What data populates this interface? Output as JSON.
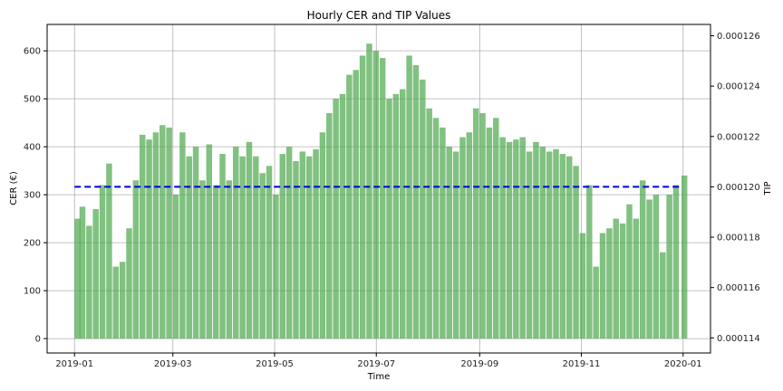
{
  "chart_data": {
    "type": "bar",
    "title": "Hourly CER and TIP Values",
    "xlabel": "Time",
    "ylabel": "CER (€)",
    "ylabel_right": "TIP",
    "grid": true,
    "x_range": [
      "2019-01-01",
      "2020-01-01"
    ],
    "ylim": [
      -30,
      655
    ],
    "ylim_right": [
      0.0001134,
      0.00012645
    ],
    "x_ticks": [
      "2019-01",
      "2019-03",
      "2019-05",
      "2019-07",
      "2019-09",
      "2019-11",
      "2020-01"
    ],
    "y_ticks": [
      0,
      100,
      200,
      300,
      400,
      500,
      600
    ],
    "y_ticks_right": [
      "0.000114",
      "0.000116",
      "0.000118",
      "0.000120",
      "0.000122",
      "0.000124",
      "0.000126"
    ],
    "colors": {
      "bars": "#4ca64c",
      "tip_line": "#0000dd",
      "left_axis": "#008000",
      "right_axis": "#0000cc",
      "grid": "#b0b0b0"
    },
    "series": [
      {
        "name": "CER (€)",
        "axis": "left",
        "style": "bars",
        "points": [
          [
            "2019-01-01",
            250
          ],
          [
            "2019-01-04",
            275
          ],
          [
            "2019-01-08",
            235
          ],
          [
            "2019-01-12",
            270
          ],
          [
            "2019-01-16",
            320
          ],
          [
            "2019-01-20",
            365
          ],
          [
            "2019-01-24",
            150
          ],
          [
            "2019-01-28",
            160
          ],
          [
            "2019-02-01",
            230
          ],
          [
            "2019-02-05",
            330
          ],
          [
            "2019-02-09",
            425
          ],
          [
            "2019-02-13",
            415
          ],
          [
            "2019-02-17",
            430
          ],
          [
            "2019-02-21",
            445
          ],
          [
            "2019-02-25",
            440
          ],
          [
            "2019-03-01",
            300
          ],
          [
            "2019-03-05",
            430
          ],
          [
            "2019-03-09",
            380
          ],
          [
            "2019-03-13",
            400
          ],
          [
            "2019-03-17",
            330
          ],
          [
            "2019-03-21",
            405
          ],
          [
            "2019-03-25",
            320
          ],
          [
            "2019-03-29",
            385
          ],
          [
            "2019-04-02",
            330
          ],
          [
            "2019-04-06",
            400
          ],
          [
            "2019-04-10",
            380
          ],
          [
            "2019-04-14",
            410
          ],
          [
            "2019-04-18",
            380
          ],
          [
            "2019-04-22",
            345
          ],
          [
            "2019-04-26",
            360
          ],
          [
            "2019-04-30",
            300
          ],
          [
            "2019-05-04",
            385
          ],
          [
            "2019-05-08",
            400
          ],
          [
            "2019-05-12",
            370
          ],
          [
            "2019-05-16",
            390
          ],
          [
            "2019-05-20",
            380
          ],
          [
            "2019-05-24",
            395
          ],
          [
            "2019-05-28",
            430
          ],
          [
            "2019-06-01",
            470
          ],
          [
            "2019-06-05",
            500
          ],
          [
            "2019-06-09",
            510
          ],
          [
            "2019-06-13",
            550
          ],
          [
            "2019-06-17",
            560
          ],
          [
            "2019-06-21",
            590
          ],
          [
            "2019-06-25",
            615
          ],
          [
            "2019-06-29",
            600
          ],
          [
            "2019-07-03",
            585
          ],
          [
            "2019-07-07",
            500
          ],
          [
            "2019-07-11",
            510
          ],
          [
            "2019-07-15",
            520
          ],
          [
            "2019-07-19",
            590
          ],
          [
            "2019-07-23",
            570
          ],
          [
            "2019-07-27",
            540
          ],
          [
            "2019-07-31",
            480
          ],
          [
            "2019-08-04",
            460
          ],
          [
            "2019-08-08",
            440
          ],
          [
            "2019-08-12",
            400
          ],
          [
            "2019-08-16",
            390
          ],
          [
            "2019-08-20",
            420
          ],
          [
            "2019-08-24",
            430
          ],
          [
            "2019-08-28",
            480
          ],
          [
            "2019-09-01",
            470
          ],
          [
            "2019-09-05",
            440
          ],
          [
            "2019-09-09",
            460
          ],
          [
            "2019-09-13",
            420
          ],
          [
            "2019-09-17",
            410
          ],
          [
            "2019-09-21",
            415
          ],
          [
            "2019-09-25",
            420
          ],
          [
            "2019-09-29",
            390
          ],
          [
            "2019-10-03",
            410
          ],
          [
            "2019-10-07",
            400
          ],
          [
            "2019-10-11",
            390
          ],
          [
            "2019-10-15",
            395
          ],
          [
            "2019-10-19",
            385
          ],
          [
            "2019-10-23",
            380
          ],
          [
            "2019-10-27",
            360
          ],
          [
            "2019-10-31",
            220
          ],
          [
            "2019-11-04",
            320
          ],
          [
            "2019-11-08",
            150
          ],
          [
            "2019-11-12",
            220
          ],
          [
            "2019-11-16",
            230
          ],
          [
            "2019-11-20",
            250
          ],
          [
            "2019-11-24",
            240
          ],
          [
            "2019-11-28",
            280
          ],
          [
            "2019-12-02",
            250
          ],
          [
            "2019-12-06",
            330
          ],
          [
            "2019-12-10",
            290
          ],
          [
            "2019-12-14",
            300
          ],
          [
            "2019-12-18",
            180
          ],
          [
            "2019-12-22",
            300
          ],
          [
            "2019-12-26",
            320
          ],
          [
            "2019-12-31",
            340
          ]
        ]
      },
      {
        "name": "TIP",
        "axis": "right",
        "style": "dashed-line",
        "points": [
          [
            "2019-01-01",
            0.00012
          ],
          [
            "2019-12-31",
            0.00012
          ]
        ]
      }
    ]
  }
}
